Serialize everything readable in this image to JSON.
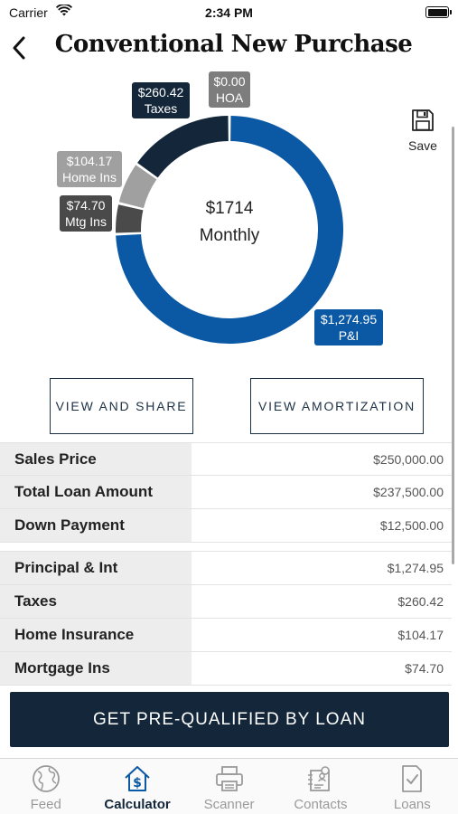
{
  "status_bar": {
    "carrier": "Carrier",
    "time": "2:34 PM"
  },
  "nav": {
    "title": "Conventional New Purchase"
  },
  "donut": {
    "center_amount": "$1714",
    "center_label": "Monthly",
    "segments": [
      {
        "name": "P&I",
        "value": 1274.95,
        "color": "#0b59a5"
      },
      {
        "name": "Mtg Ins",
        "value": 74.7,
        "color": "#4a4a4a"
      },
      {
        "name": "Home Ins",
        "value": 104.17,
        "color": "#a0a0a0"
      },
      {
        "name": "Taxes",
        "value": 260.42,
        "color": "#14273a"
      },
      {
        "name": "HOA",
        "value": 0.0,
        "color": "#7d7d7d"
      }
    ],
    "labels": {
      "taxes_amount": "$260.42",
      "taxes_name": "Taxes",
      "hoa_amount": "$0.00",
      "hoa_name": "HOA",
      "homeins_amount": "$104.17",
      "homeins_name": "Home Ins",
      "mtgins_amount": "$74.70",
      "mtgins_name": "Mtg Ins",
      "pi_amount": "$1,274.95",
      "pi_name": "P&I"
    }
  },
  "save": {
    "label": "Save",
    "icon": "floppy-disk-icon"
  },
  "actions": {
    "share_label": "VIEW AND SHARE",
    "amortization_label": "VIEW AMORTIZATION"
  },
  "loan_rows": [
    {
      "label": "Sales Price",
      "value": "$250,000.00"
    },
    {
      "label": "Total Loan Amount",
      "value": "$237,500.00"
    },
    {
      "label": "Down Payment",
      "value": "$12,500.00"
    }
  ],
  "payment_rows": [
    {
      "label": "Principal & Int",
      "value": "$1,274.95"
    },
    {
      "label": "Taxes",
      "value": "$260.42"
    },
    {
      "label": "Home Insurance",
      "value": "$104.17"
    },
    {
      "label": "Mortgage Ins",
      "value": "$74.70"
    }
  ],
  "cta": {
    "label": "GET PRE-QUALIFIED BY LOAN"
  },
  "tabs": [
    {
      "label": "Feed",
      "icon": "globe-icon",
      "active": false
    },
    {
      "label": "Calculator",
      "icon": "house-dollar-icon",
      "active": true
    },
    {
      "label": "Scanner",
      "icon": "printer-icon",
      "active": false
    },
    {
      "label": "Contacts",
      "icon": "contact-card-icon",
      "active": false
    },
    {
      "label": "Loans",
      "icon": "checklist-icon",
      "active": false
    }
  ],
  "colors": {
    "navy": "#14273a",
    "blue": "#0b59a5",
    "tab_inactive": "#9a9a9a"
  }
}
